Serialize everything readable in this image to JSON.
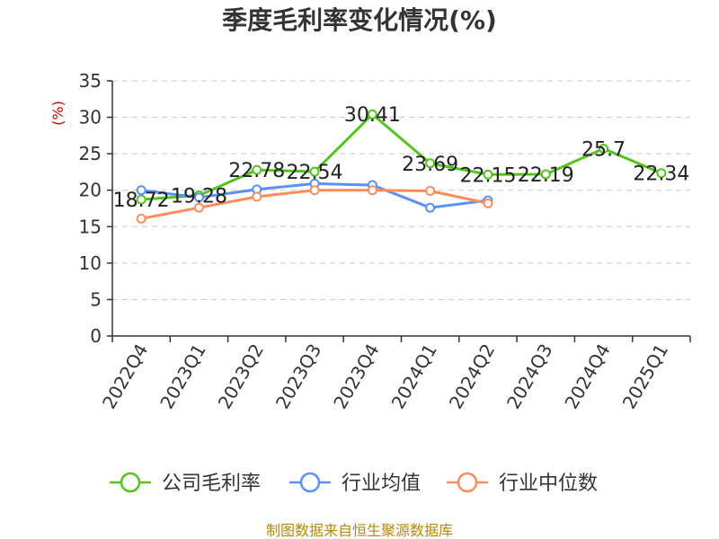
{
  "chart_data": {
    "type": "line",
    "title": "季度毛利率变化情况(%)",
    "ylabel": "(%)",
    "xlabel": "",
    "ylim": [
      0,
      35
    ],
    "yticks": [
      0,
      5,
      10,
      15,
      20,
      25,
      30,
      35
    ],
    "grid": true,
    "legend_position": "bottom",
    "categories": [
      "2022Q4",
      "2023Q1",
      "2023Q2",
      "2023Q3",
      "2023Q4",
      "2024Q1",
      "2024Q2",
      "2024Q3",
      "2024Q4",
      "2025Q1"
    ],
    "series": [
      {
        "name": "公司毛利率",
        "color": "#52c41a",
        "values": [
          18.72,
          19.28,
          22.78,
          22.54,
          30.41,
          23.69,
          22.15,
          22.19,
          25.7,
          22.34
        ],
        "labels": [
          "18.72",
          "19.28",
          "22.78",
          "22.54",
          "30.41",
          "23.69",
          "22.15",
          "22.19",
          "25.7",
          "22.34"
        ]
      },
      {
        "name": "行业均值",
        "color": "#5b8ff9",
        "values": [
          20.0,
          19.0,
          20.1,
          20.9,
          20.7,
          17.6,
          18.6,
          null,
          null,
          null
        ]
      },
      {
        "name": "行业中位数",
        "color": "#ff8c5a",
        "values": [
          16.1,
          17.6,
          19.1,
          20.0,
          20.0,
          19.9,
          18.2,
          null,
          null,
          null
        ]
      }
    ]
  },
  "source": "制图数据来自恒生聚源数据库"
}
